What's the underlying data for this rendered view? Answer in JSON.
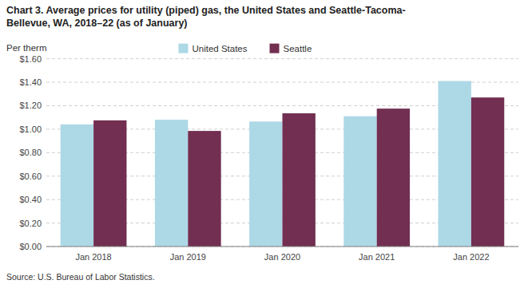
{
  "chart_data": {
    "type": "bar",
    "title": "Chart 3. Average prices for utility (piped) gas, the United States and Seattle-Tacoma-\nBellevue, WA, 2018–22 (as of January)",
    "ylabel": "Per therm",
    "source": "Source: U.S. Bureau of Labor Statistics.",
    "categories": [
      "Jan 2018",
      "Jan 2019",
      "Jan 2020",
      "Jan 2021",
      "Jan 2022"
    ],
    "series": [
      {
        "name": "United States",
        "color": "#add8e6",
        "values": [
          1.04,
          1.08,
          1.065,
          1.11,
          1.41
        ]
      },
      {
        "name": "Seattle",
        "color": "#722F51",
        "values": [
          1.075,
          0.985,
          1.135,
          1.175,
          1.27
        ]
      }
    ],
    "ylim": [
      0.0,
      1.6
    ],
    "yticks": [
      {
        "value": 0.0,
        "label": "$0.00"
      },
      {
        "value": 0.2,
        "label": "$0.20"
      },
      {
        "value": 0.4,
        "label": "$0.40"
      },
      {
        "value": 0.6,
        "label": "$0.60"
      },
      {
        "value": 0.8,
        "label": "$0.80"
      },
      {
        "value": 1.0,
        "label": "$1.00"
      },
      {
        "value": 1.2,
        "label": "$1.20"
      },
      {
        "value": 1.4,
        "label": "$1.40"
      },
      {
        "value": 1.6,
        "label": "$1.60"
      }
    ],
    "grid": true,
    "legend": "top"
  }
}
